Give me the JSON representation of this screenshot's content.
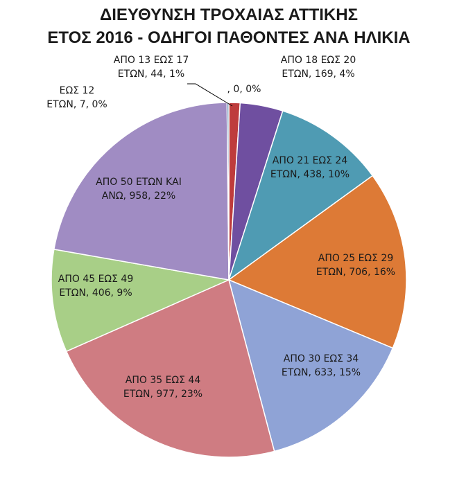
{
  "chart_data": {
    "type": "pie",
    "title": [
      "ΔΙΕΥΘΥΝΣΗ ΤΡΟΧΑΙΑΣ ΑΤΤΙΚΗΣ",
      "ΕΤΟΣ 2016 - ΟΔΗΓΟΙ ΠΑΘΟΝΤΕΣ ΑΝΑ ΗΛΙΚΙΑ"
    ],
    "slices": [
      {
        "category": "",
        "value": 0,
        "percent": "0%",
        "label_lines": [
          ", 0, 0%"
        ],
        "color": "#4a6fa5"
      },
      {
        "category": "ΑΠΟ 13 ΕΩΣ 17 ΕΤΩΝ",
        "value": 44,
        "percent": "1%",
        "label_lines": [
          "ΑΠΟ 13 ΕΩΣ 17",
          "ΕΤΩΝ, 44, 1%"
        ],
        "color": "#be3c3c"
      },
      {
        "category": "ΑΠΟ 18 ΕΩΣ 20 ΕΤΩΝ",
        "value": 169,
        "percent": "4%",
        "label_lines": [
          "ΑΠΟ 18 ΕΩΣ 20",
          "ΕΤΩΝ, 169, 4%"
        ],
        "color": "#6f4fa0"
      },
      {
        "category": "ΑΠΟ 21 ΕΩΣ 24 ΕΤΩΝ",
        "value": 438,
        "percent": "10%",
        "label_lines": [
          "ΑΠΟ 21 ΕΩΣ 24",
          "ΕΤΩΝ, 438, 10%"
        ],
        "color": "#4f9bb3"
      },
      {
        "category": "ΑΠΟ 25 ΕΩΣ 29 ΕΤΩΝ",
        "value": 706,
        "percent": "16%",
        "label_lines": [
          "ΑΠΟ 25 ΕΩΣ 29",
          "ΕΤΩΝ, 706, 16%"
        ],
        "color": "#dd7a36"
      },
      {
        "category": "ΑΠΟ 30 ΕΩΣ 34 ΕΤΩΝ",
        "value": 633,
        "percent": "15%",
        "label_lines": [
          "ΑΠΟ 30 ΕΩΣ 34",
          "ΕΤΩΝ, 633, 15%"
        ],
        "color": "#8fa3d6"
      },
      {
        "category": "ΑΠΟ 35 ΕΩΣ 44 ΕΤΩΝ",
        "value": 977,
        "percent": "23%",
        "label_lines": [
          "ΑΠΟ 35 ΕΩΣ 44",
          "ΕΤΩΝ, 977, 23%"
        ],
        "color": "#cf7c82"
      },
      {
        "category": "ΑΠΟ 45 ΕΩΣ 49 ΕΤΩΝ",
        "value": 406,
        "percent": "9%",
        "label_lines": [
          "ΑΠΟ 45 ΕΩΣ 49",
          "ΕΤΩΝ, 406, 9%"
        ],
        "color": "#a8cf87"
      },
      {
        "category": "ΑΠΟ 50 ΕΤΩΝ ΚΑΙ ΑΝΩ",
        "value": 958,
        "percent": "22%",
        "label_lines": [
          "ΑΠΟ 50 ΕΤΩΝ ΚΑΙ",
          "ΑΝΩ, 958, 22%"
        ],
        "color": "#a08cc3"
      },
      {
        "category": "ΕΩΣ 12 ΕΤΩΝ",
        "value": 7,
        "percent": "0%",
        "label_lines": [
          "ΕΩΣ 12",
          "ΕΤΩΝ, 7, 0%"
        ],
        "color": "#3d6f9e"
      }
    ]
  }
}
